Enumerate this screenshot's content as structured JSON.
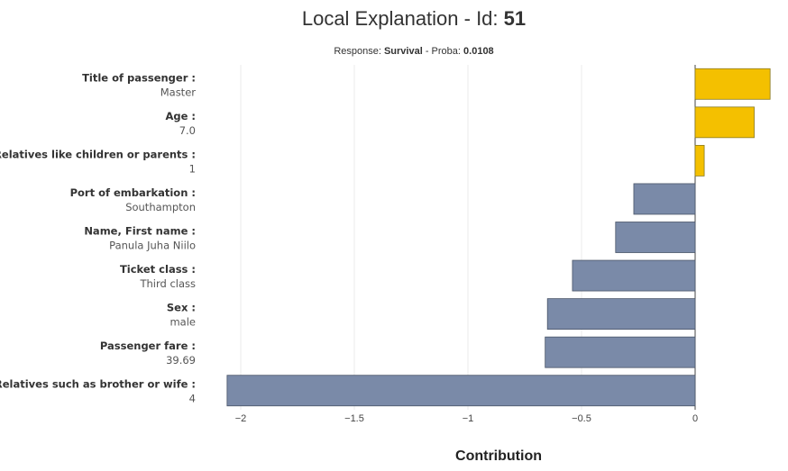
{
  "header": {
    "title_prefix": "Local Explanation - Id: ",
    "title_id": "51",
    "subtitle_prefix": "Response: ",
    "response": "Survival",
    "subtitle_mid": " - Proba: ",
    "proba": "0.0108"
  },
  "chart_data": {
    "type": "bar",
    "orientation": "horizontal",
    "xlabel": "Contribution",
    "xlim": [
      -2.08,
      0.4
    ],
    "xticks": [
      -2,
      -1.5,
      -1,
      -0.5,
      0
    ],
    "xtick_labels": [
      "−2",
      "−1.5",
      "−1",
      "−0.5",
      "0"
    ],
    "grid": true,
    "colors": {
      "positive": "#f4c000",
      "negative": "#7a8aa8",
      "positive_edge": "#8a7a20",
      "negative_edge": "#4a5568"
    },
    "categories": [
      {
        "name": "Title of passenger :",
        "value": "Master",
        "contribution": 0.33
      },
      {
        "name": "Age :",
        "value": "7.0",
        "contribution": 0.26
      },
      {
        "name": "Relatives like children or parents :",
        "value": "1",
        "contribution": 0.04
      },
      {
        "name": "Port of embarkation :",
        "value": "Southampton",
        "contribution": -0.27
      },
      {
        "name": "Name, First name :",
        "value": "Panula Juha Niilo",
        "contribution": -0.35
      },
      {
        "name": "Ticket class :",
        "value": "Third class",
        "contribution": -0.54
      },
      {
        "name": "Sex :",
        "value": "male",
        "contribution": -0.65
      },
      {
        "name": "Passenger fare :",
        "value": "39.69",
        "contribution": -0.66
      },
      {
        "name": "Relatives such as brother or wife :",
        "value": "4",
        "contribution": -2.06
      }
    ]
  }
}
